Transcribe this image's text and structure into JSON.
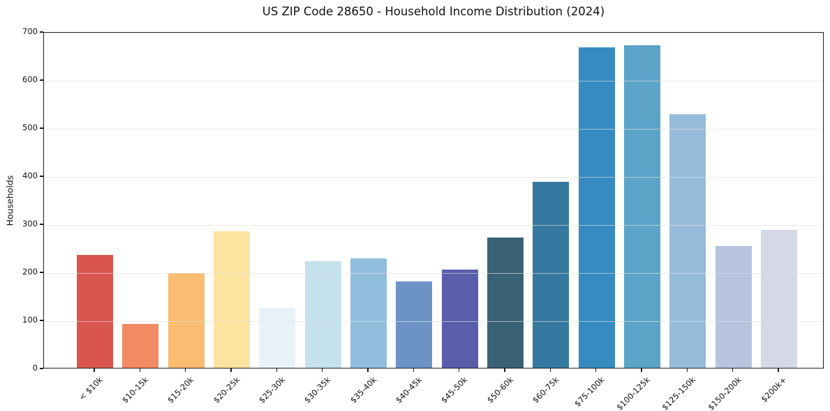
{
  "chart_data": {
    "type": "bar",
    "title": "US ZIP Code 28650 - Household Income Distribution (2024)",
    "xlabel": "",
    "ylabel": "Households",
    "categories": [
      "< $10k",
      "$10-15k",
      "$15-20k",
      "$20-25k",
      "$25-30k",
      "$30-35k",
      "$35-40k",
      "$40-45k",
      "$45-50k",
      "$50-60k",
      "$60-75k",
      "$75-100k",
      "$100-125k",
      "$125-150k",
      "$150-200k",
      "$200k+"
    ],
    "values": [
      235,
      92,
      197,
      284,
      124,
      222,
      227,
      180,
      204,
      271,
      387,
      667,
      671,
      527,
      254,
      287
    ],
    "bar_colors": [
      "#d9564f",
      "#f28a63",
      "#f9bc71",
      "#fce3a0",
      "#e7f2f8",
      "#c4e1ed",
      "#90bddc",
      "#6d93c6",
      "#5a5da9",
      "#3a6275",
      "#35789f",
      "#368cc0",
      "#5ca3c8",
      "#96bada",
      "#b6c4df",
      "#d5d8e7"
    ],
    "ylim": [
      0,
      700
    ],
    "yticks": [
      0,
      100,
      200,
      300,
      400,
      500,
      600,
      700
    ],
    "grid": "horizontal-light",
    "legend": "none",
    "axis_color": "#1c1c1c",
    "grid_color": "#e1e1e1",
    "background": "#ffffff"
  }
}
